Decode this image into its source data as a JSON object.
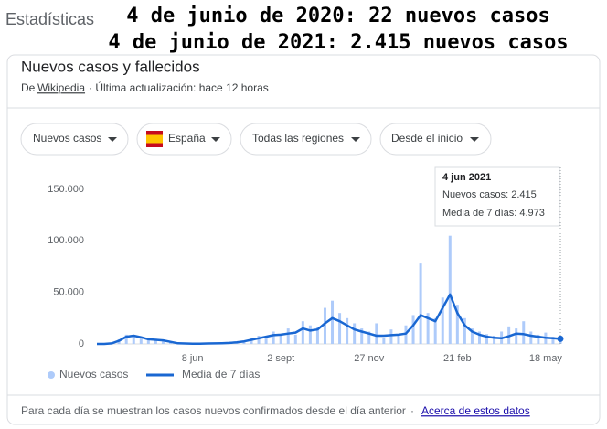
{
  "header": {
    "overlay_lines": [
      "4 de junio de 2020: 22 nuevos casos",
      "4 de junio de 2021: 2.415 nuevos casos"
    ],
    "section": "Estadísticas"
  },
  "card": {
    "title": "Nuevos casos y fallecidos",
    "source_prefix": "De",
    "source_link": "Wikipedia",
    "updated": "· Última actualización: hace 12 horas",
    "filters": [
      "Nuevos casos",
      "España",
      "Todas las regiones",
      "Desde el inicio"
    ],
    "footer": {
      "note": "Para cada día se muestran los casos nuevos confirmados desde el día anterior",
      "separator": "·",
      "link": "Acerca de estos datos"
    }
  },
  "chart_data": {
    "type": "bar_line",
    "categories": [
      null,
      null,
      null,
      null,
      null,
      null,
      null,
      null,
      null,
      null,
      null,
      null,
      null,
      "8 jun",
      null,
      null,
      null,
      null,
      null,
      null,
      null,
      null,
      null,
      null,
      null,
      "2 sept",
      null,
      null,
      null,
      null,
      null,
      null,
      null,
      null,
      null,
      null,
      null,
      "27 nov",
      null,
      null,
      null,
      null,
      null,
      null,
      null,
      null,
      null,
      null,
      null,
      "21 feb",
      null,
      null,
      null,
      null,
      null,
      null,
      null,
      null,
      null,
      null,
      null,
      "18 may",
      null,
      null
    ],
    "series": [
      {
        "name": "Nuevos casos",
        "color": "#aecbfa",
        "values": [
          0,
          0,
          800,
          4500,
          9000,
          7500,
          6000,
          3500,
          5000,
          2500,
          1500,
          500,
          300,
          200,
          400,
          300,
          600,
          900,
          1200,
          2000,
          3200,
          5500,
          8000,
          6500,
          12000,
          10000,
          15000,
          9000,
          22000,
          18000,
          16000,
          35000,
          42000,
          30000,
          25000,
          20000,
          15000,
          12000,
          20000,
          6000,
          14000,
          9000,
          18000,
          28000,
          78000,
          30000,
          25000,
          45000,
          105000,
          38000,
          25000,
          15000,
          12000,
          9500,
          8000,
          12000,
          17000,
          15000,
          22000,
          12000,
          9000,
          11000,
          7000,
          2415
        ]
      },
      {
        "name": "Media de 7 días",
        "color": "#1967d2",
        "values": [
          0,
          0,
          500,
          3000,
          7000,
          8000,
          6500,
          4500,
          4000,
          3500,
          2000,
          600,
          400,
          300,
          300,
          400,
          500,
          700,
          1000,
          1500,
          2500,
          4000,
          5500,
          7000,
          8500,
          9000,
          10000,
          11000,
          15000,
          13000,
          14000,
          20000,
          25000,
          22000,
          18000,
          14000,
          12000,
          10000,
          8000,
          8000,
          8500,
          9000,
          10000,
          18000,
          28000,
          25000,
          22000,
          35000,
          48000,
          30000,
          18000,
          12000,
          9000,
          7000,
          6000,
          5500,
          7500,
          10000,
          9500,
          8000,
          7000,
          6000,
          5500,
          4973
        ],
        "axis": "y"
      }
    ],
    "ylim": [
      0,
      150000
    ],
    "yticks": [
      0,
      {
        "value": 50000,
        "label": "50.000"
      },
      {
        "value": 100000,
        "label": "100.000"
      },
      {
        "value": 150000,
        "label": "150.000"
      }
    ],
    "grid": false,
    "legend": "bottom",
    "tooltip": {
      "title": "4 jun 2021",
      "lines": [
        "Nuevos casos: 2.415",
        "Media de 7 días: 4.973"
      ]
    }
  }
}
